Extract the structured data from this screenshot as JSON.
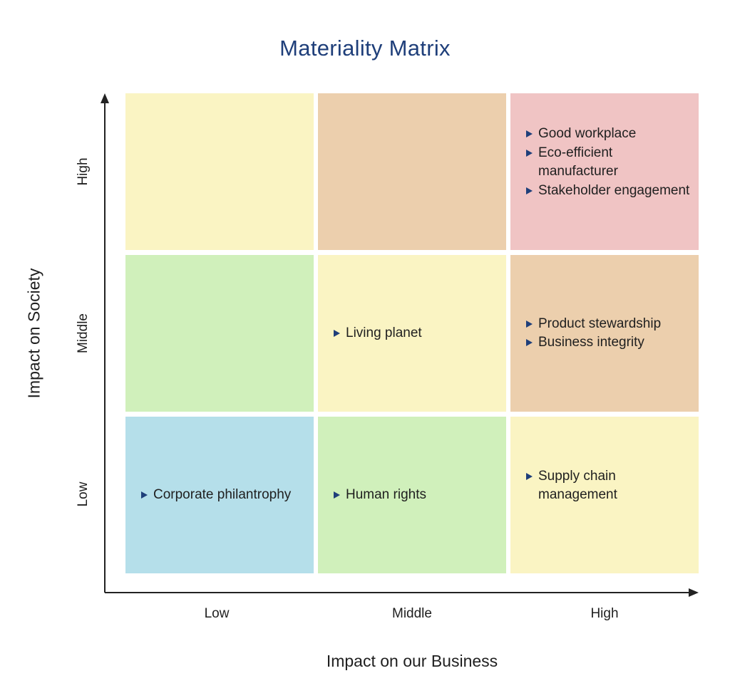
{
  "title": "Materiality Matrix",
  "x_axis": {
    "label": "Impact on our Business",
    "ticks": [
      "Low",
      "Middle",
      "High"
    ]
  },
  "y_axis": {
    "label": "Impact on Society",
    "ticks": [
      "High",
      "Middle",
      "Low"
    ]
  },
  "colors": {
    "title": "#1f3f7a",
    "bullet": "#1f3f7a",
    "yellow": "#faf4c3",
    "tan": "#eccfad",
    "pink": "#f0c4c4",
    "green": "#d0f0bb",
    "blue": "#b5dfea"
  },
  "cells": [
    {
      "row": "High",
      "col": "Low",
      "color": "#faf4c3",
      "items": []
    },
    {
      "row": "High",
      "col": "Middle",
      "color": "#eccfad",
      "items": []
    },
    {
      "row": "High",
      "col": "High",
      "color": "#f0c4c4",
      "items": [
        "Good workplace",
        "Eco-efficient manufacturer",
        "Stakeholder engagement"
      ]
    },
    {
      "row": "Middle",
      "col": "Low",
      "color": "#d0f0bb",
      "items": []
    },
    {
      "row": "Middle",
      "col": "Middle",
      "color": "#faf4c3",
      "items": [
        "Living planet"
      ]
    },
    {
      "row": "Middle",
      "col": "High",
      "color": "#eccfad",
      "items": [
        "Product stewardship",
        "Business integrity"
      ]
    },
    {
      "row": "Low",
      "col": "Low",
      "color": "#b5dfea",
      "items": [
        "Corporate philantrophy"
      ]
    },
    {
      "row": "Low",
      "col": "Middle",
      "color": "#d0f0bb",
      "items": [
        "Human rights"
      ]
    },
    {
      "row": "Low",
      "col": "High",
      "color": "#faf4c3",
      "items": [
        "Supply chain management"
      ]
    }
  ]
}
